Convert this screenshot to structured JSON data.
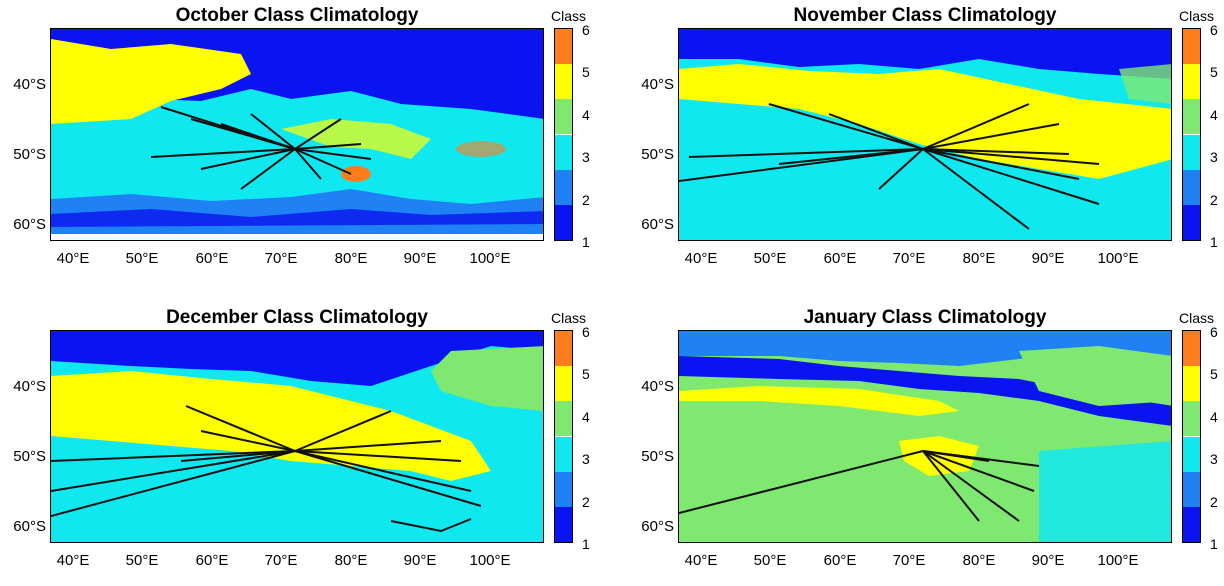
{
  "colorbar": {
    "title": "Class",
    "ticks": [
      "1",
      "2",
      "3",
      "4",
      "5",
      "6"
    ],
    "colors": [
      "#0a14f0",
      "#1e82f5",
      "#10e8f0",
      "#7ee870",
      "#ffff00",
      "#ff7d1a"
    ]
  },
  "axes": {
    "y_labels": [
      "40°S",
      "50°S",
      "60°S"
    ],
    "x_labels": [
      "40°E",
      "50°E",
      "60°E",
      "70°E",
      "80°E",
      "90°E",
      "100°E"
    ]
  },
  "chart_data": [
    {
      "type": "heatmap",
      "title": "October Class Climatology",
      "xlim": [
        36,
        107
      ],
      "ylim": [
        -63,
        -32
      ],
      "colorbar_label": "Class",
      "clim": [
        1,
        6
      ],
      "tracks_origin": [
        71,
        -49
      ],
      "dominant_classes": {
        "north": 1,
        "northwest": 5,
        "central": 3,
        "south": 2
      }
    },
    {
      "type": "heatmap",
      "title": "November Class Climatology",
      "xlim": [
        36,
        107
      ],
      "ylim": [
        -63,
        -32
      ],
      "colorbar_label": "Class",
      "clim": [
        1,
        6
      ],
      "tracks_origin": [
        71,
        -49
      ],
      "dominant_classes": {
        "north": 1,
        "middle": 5,
        "south": 3
      }
    },
    {
      "type": "heatmap",
      "title": "December Class Climatology",
      "xlim": [
        36,
        107
      ],
      "ylim": [
        -63,
        -32
      ],
      "colorbar_label": "Class",
      "clim": [
        1,
        6
      ],
      "tracks_origin": [
        71,
        -49
      ],
      "dominant_classes": {
        "north": 1,
        "middle": 5,
        "east": 4,
        "south": 3
      }
    },
    {
      "type": "heatmap",
      "title": "January Class Climatology",
      "xlim": [
        36,
        107
      ],
      "ylim": [
        -63,
        -32
      ],
      "colorbar_label": "Class",
      "clim": [
        1,
        6
      ],
      "tracks_origin": [
        71,
        -49
      ],
      "dominant_classes": {
        "north": 2,
        "middle": 4,
        "south": 4
      }
    }
  ]
}
